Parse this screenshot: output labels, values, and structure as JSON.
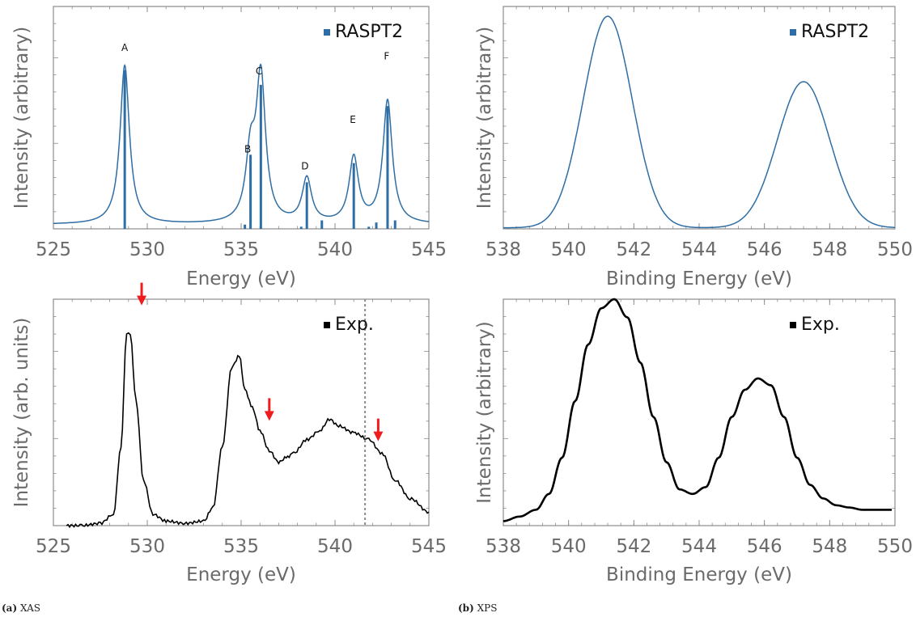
{
  "captions": [
    {
      "tag": "(a)",
      "text": "XAS"
    },
    {
      "tag": "(b)",
      "text": "XPS"
    }
  ],
  "colors": {
    "calc": "#2f6ea4",
    "exp": "#000000",
    "arrow": "#ee1c1c",
    "axis": "#8c8c8c",
    "tick_label": "#6a6a6a",
    "dotted": "#8c8c8c"
  },
  "chart_data": [
    {
      "id": "xas-calc",
      "type": "line",
      "xlabel": "Energy (eV)",
      "ylabel": "Intensity (arbitrary)",
      "xlim": [
        525,
        545
      ],
      "ylim": [
        0,
        1.05
      ],
      "xticks": [
        525,
        530,
        535,
        540,
        545
      ],
      "legend": {
        "label": "RASPT2",
        "position": "top-right"
      },
      "peaks": [
        {
          "label": "A",
          "x": 528.8,
          "height": 0.75,
          "width": 0.3
        },
        {
          "label": "B",
          "x": 535.5,
          "height": 0.3,
          "width": 0.3
        },
        {
          "label": "C",
          "x": 536.05,
          "height": 0.68,
          "width": 0.3
        },
        {
          "label": "D",
          "x": 538.5,
          "height": 0.21,
          "width": 0.3
        },
        {
          "label": "E",
          "x": 541.0,
          "height": 0.31,
          "width": 0.3
        },
        {
          "label": "F",
          "x": 542.8,
          "height": 0.58,
          "width": 0.3
        }
      ],
      "sticks": [
        {
          "x": 528.8,
          "y": 0.75
        },
        {
          "x": 535.2,
          "y": 0.02
        },
        {
          "x": 535.5,
          "y": 0.35
        },
        {
          "x": 536.05,
          "y": 0.68
        },
        {
          "x": 538.2,
          "y": 0.01
        },
        {
          "x": 538.5,
          "y": 0.22
        },
        {
          "x": 539.3,
          "y": 0.04
        },
        {
          "x": 541.0,
          "y": 0.31
        },
        {
          "x": 541.8,
          "y": 0.01
        },
        {
          "x": 542.2,
          "y": 0.03
        },
        {
          "x": 542.8,
          "y": 0.58
        },
        {
          "x": 543.2,
          "y": 0.04
        }
      ],
      "peak_labels": [
        {
          "text": "A",
          "x": 528.8,
          "y": 0.84
        },
        {
          "text": "B",
          "x": 535.35,
          "y": 0.36
        },
        {
          "text": "C",
          "x": 535.95,
          "y": 0.73
        },
        {
          "text": "D",
          "x": 538.4,
          "y": 0.28
        },
        {
          "text": "E",
          "x": 540.95,
          "y": 0.5
        },
        {
          "text": "F",
          "x": 542.75,
          "y": 0.8
        }
      ]
    },
    {
      "id": "xps-calc",
      "type": "line",
      "xlabel": "Binding Energy (eV)",
      "ylabel": "Intensity (arbitrary)",
      "xlim": [
        538,
        550
      ],
      "ylim": [
        0,
        1.02
      ],
      "xticks": [
        538,
        540,
        542,
        544,
        546,
        548,
        550
      ],
      "legend": {
        "label": "RASPT2",
        "position": "top-right"
      },
      "gaussians": [
        {
          "x": 541.2,
          "height": 0.97,
          "sigma": 0.75
        },
        {
          "x": 547.2,
          "height": 0.67,
          "sigma": 0.8
        }
      ]
    },
    {
      "id": "xas-exp",
      "type": "line",
      "xlabel": "Energy (eV)",
      "ylabel": "Intensity (arb. units)",
      "xlim": [
        525,
        545
      ],
      "ylim": [
        0,
        1.0
      ],
      "xticks": [
        525,
        530,
        535,
        540,
        545
      ],
      "legend": {
        "label": "Exp.",
        "position": "top-right"
      },
      "x": [
        525.7,
        526.5,
        527.5,
        528.2,
        528.6,
        528.9,
        529.1,
        529.4,
        529.8,
        530.3,
        531.0,
        532.0,
        533.0,
        533.5,
        534.0,
        534.5,
        534.9,
        535.2,
        535.6,
        536.0,
        536.5,
        537.0,
        537.4,
        537.8,
        538.5,
        539.2,
        539.7,
        540.2,
        541.0,
        541.8,
        542.5,
        543.2,
        544.0,
        545.0
      ],
      "y": [
        0.0,
        0.0,
        0.01,
        0.05,
        0.35,
        0.85,
        0.84,
        0.55,
        0.2,
        0.05,
        0.02,
        0.01,
        0.02,
        0.08,
        0.35,
        0.7,
        0.75,
        0.6,
        0.52,
        0.42,
        0.33,
        0.28,
        0.3,
        0.32,
        0.38,
        0.42,
        0.47,
        0.44,
        0.41,
        0.38,
        0.32,
        0.2,
        0.12,
        0.06
      ],
      "arrows_x": [
        529.7,
        536.5,
        542.3
      ],
      "arrow_heights": [
        0.98,
        0.47,
        0.38
      ],
      "dotted_line_x": 541.6
    },
    {
      "id": "xps-exp",
      "type": "line",
      "xlabel": "Binding Energy (eV)",
      "ylabel": "Intensity (arbitrary)",
      "xlim": [
        538,
        550
      ],
      "ylim": [
        0,
        1.0
      ],
      "xticks": [
        538,
        540,
        542,
        544,
        546,
        548,
        550
      ],
      "legend": {
        "label": "Exp.",
        "position": "top-right"
      },
      "x": [
        538.0,
        538.5,
        539.0,
        539.4,
        539.8,
        540.2,
        540.6,
        541.0,
        541.4,
        541.8,
        542.2,
        542.6,
        543.0,
        543.4,
        543.8,
        544.2,
        544.6,
        545.0,
        545.4,
        545.8,
        546.2,
        546.6,
        547.0,
        547.4,
        547.8,
        548.2,
        548.6,
        549.0,
        549.5,
        549.9
      ],
      "y": [
        0.02,
        0.04,
        0.07,
        0.14,
        0.3,
        0.55,
        0.8,
        0.96,
        1.0,
        0.92,
        0.72,
        0.48,
        0.28,
        0.16,
        0.14,
        0.17,
        0.3,
        0.48,
        0.6,
        0.65,
        0.62,
        0.48,
        0.3,
        0.18,
        0.12,
        0.09,
        0.08,
        0.07,
        0.07,
        0.07
      ]
    }
  ]
}
